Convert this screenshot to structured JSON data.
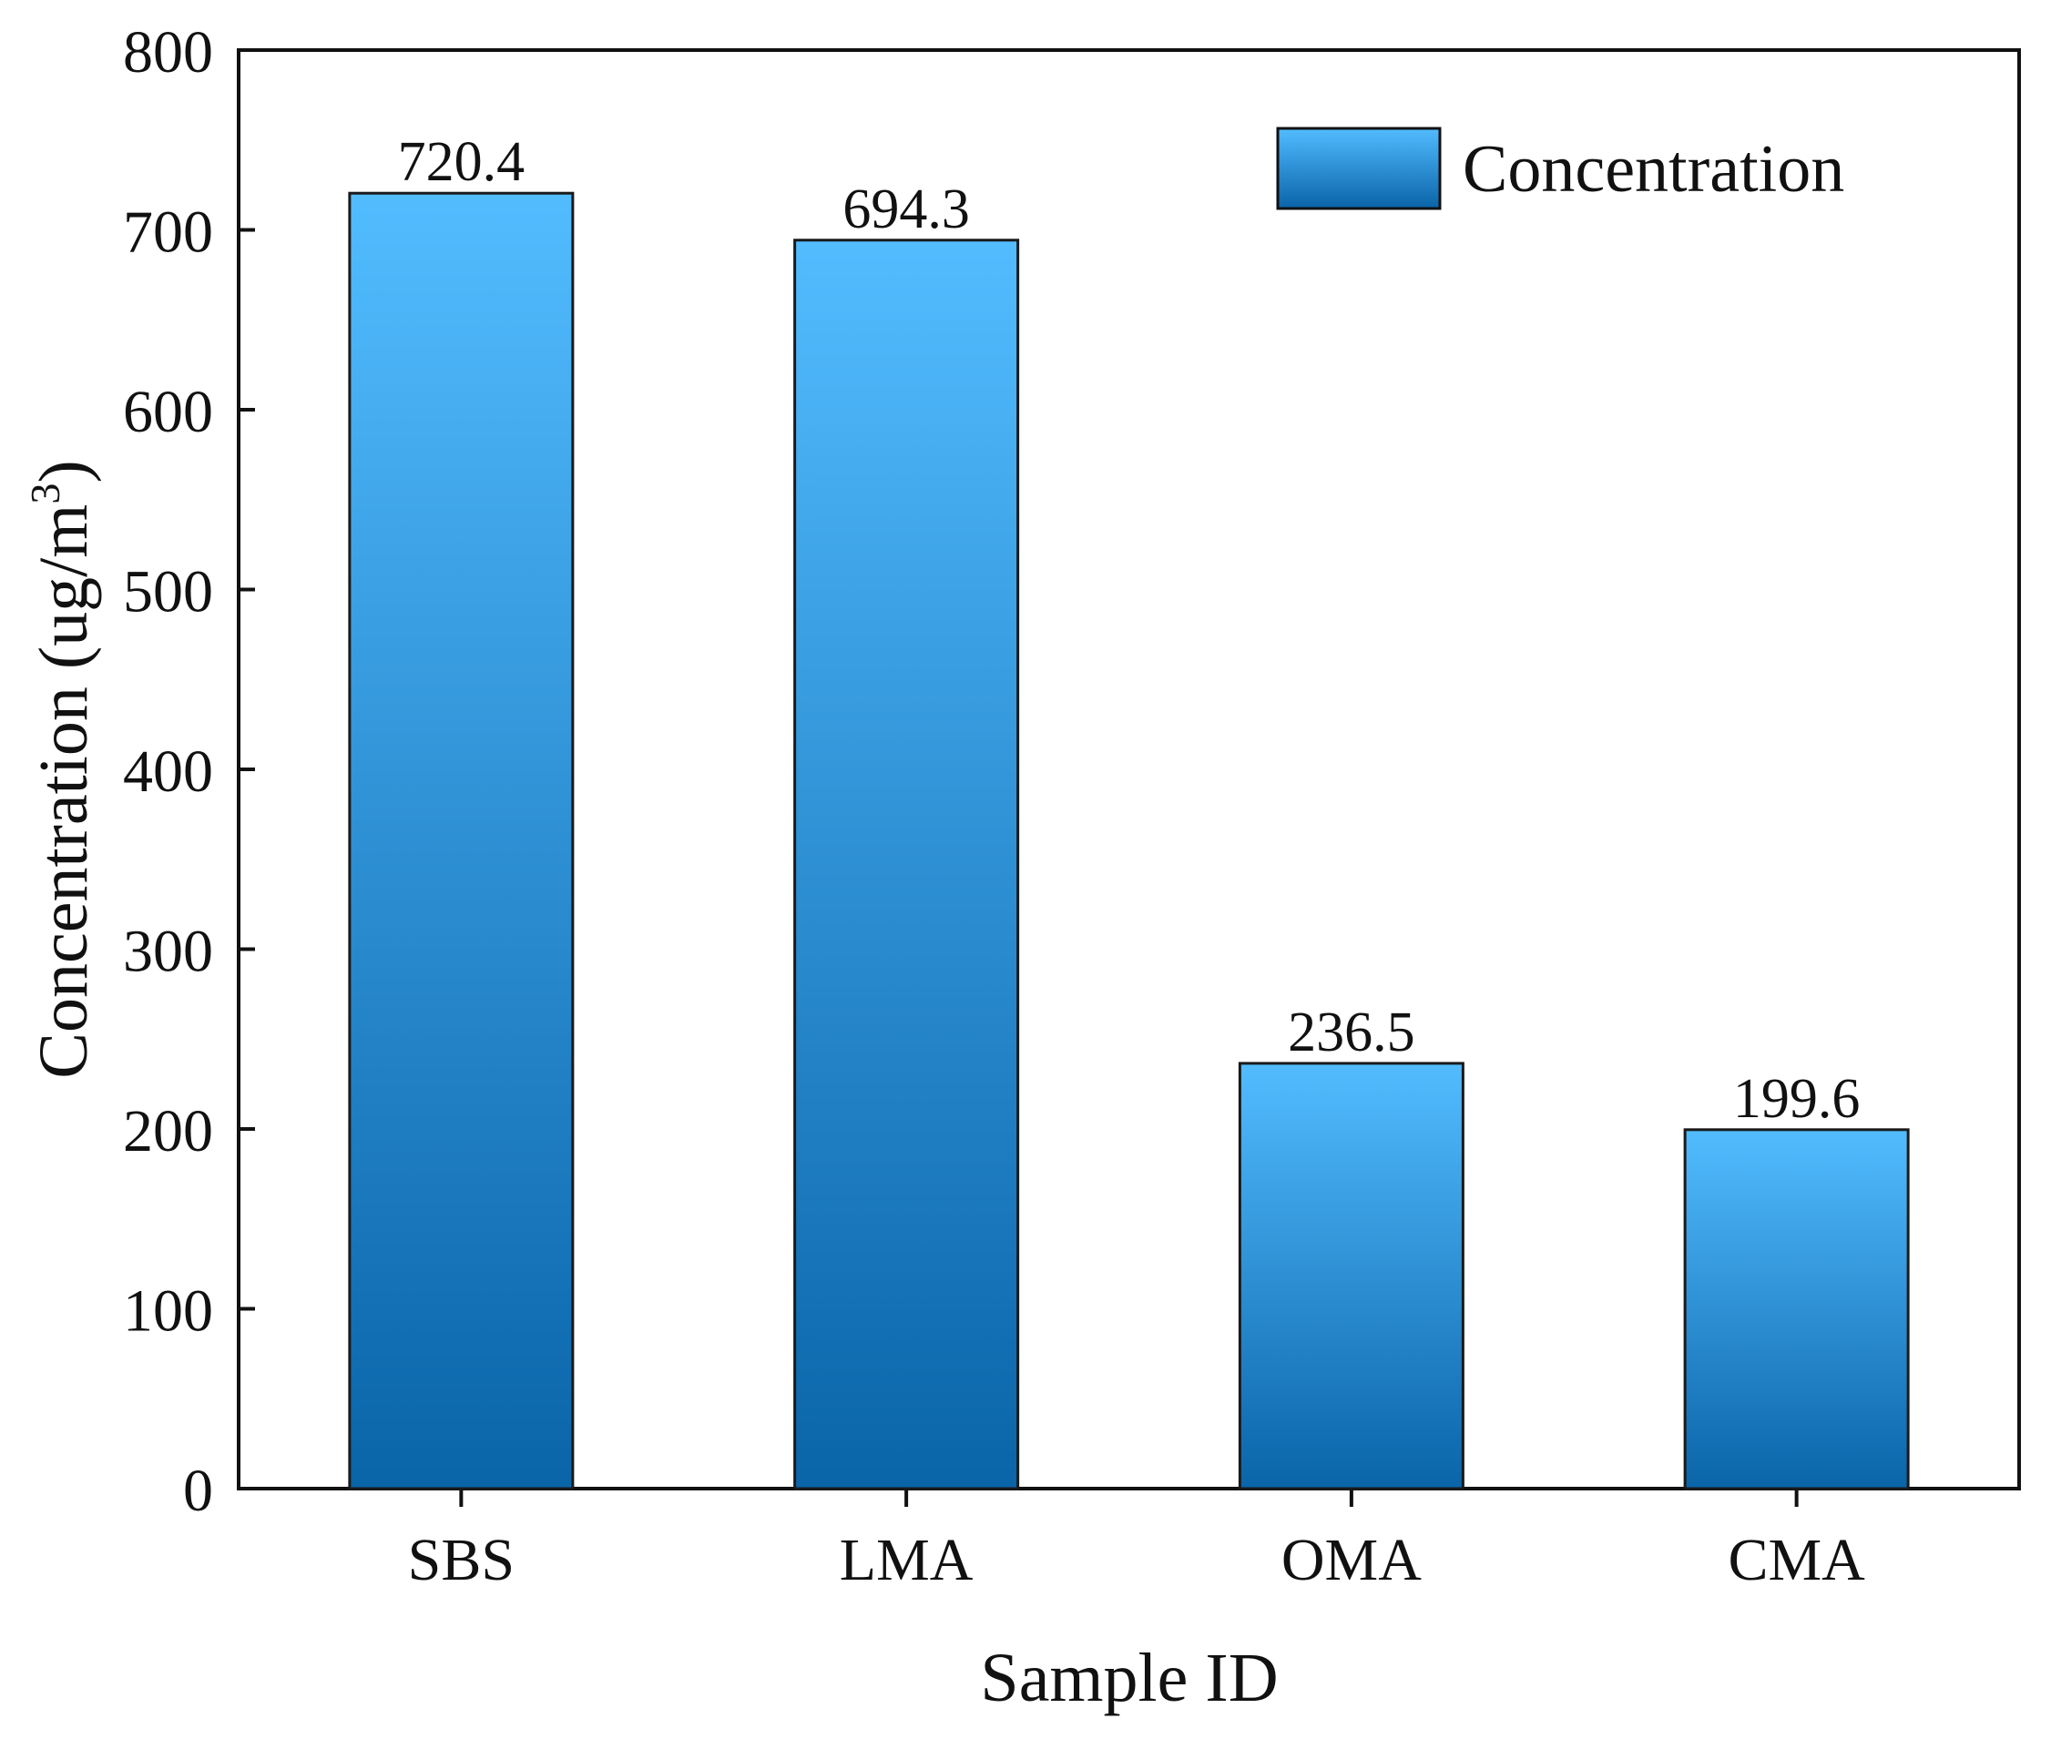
{
  "chart_data": {
    "type": "bar",
    "title": "",
    "categories": [
      "SBS",
      "LMA",
      "OMA",
      "CMA"
    ],
    "series": [
      {
        "name": "Concentration",
        "values": [
          720.4,
          694.3,
          236.5,
          199.6
        ],
        "data_labels": [
          "720.4",
          "694.3",
          "236.5",
          "199.6"
        ]
      }
    ],
    "xlabel": "Sample ID",
    "ylabel": {
      "base": "Concentration (ug/m",
      "superscript": "3",
      "suffix": ")"
    },
    "ylim": [
      0,
      800
    ],
    "yticks": [
      0,
      100,
      200,
      300,
      400,
      500,
      600,
      700,
      800
    ],
    "ytick_labels": [
      "0",
      "100",
      "200",
      "300",
      "400",
      "500",
      "600",
      "700",
      "800"
    ],
    "grid": false,
    "legend": {
      "position": "top-right",
      "label": "Concentration"
    },
    "colors": {
      "bar_top": "#52bcff",
      "bar_bottom": "#0a64a8",
      "bar_edge": "#1a1a1a",
      "axis": "#111111"
    }
  }
}
